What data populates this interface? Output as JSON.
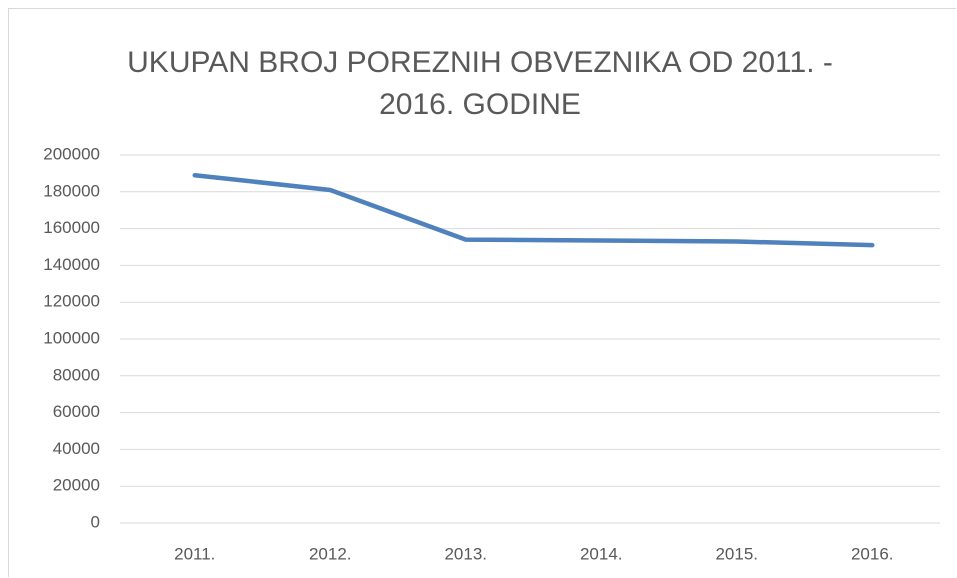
{
  "chart_data": {
    "type": "line",
    "title": "UKUPAN BROJ POREZNIH OBVEZNIKA OD 2011. - 2016. GODINE",
    "categories": [
      "2011.",
      "2012.",
      "2013.",
      "2014.",
      "2015.",
      "2016."
    ],
    "values": [
      189000,
      181000,
      154000,
      153500,
      153000,
      151000
    ],
    "color": "#4f81bd",
    "ylim": [
      0,
      200000
    ],
    "yticks": [
      0,
      20000,
      40000,
      60000,
      80000,
      100000,
      120000,
      140000,
      160000,
      180000,
      200000
    ],
    "grid": true
  }
}
